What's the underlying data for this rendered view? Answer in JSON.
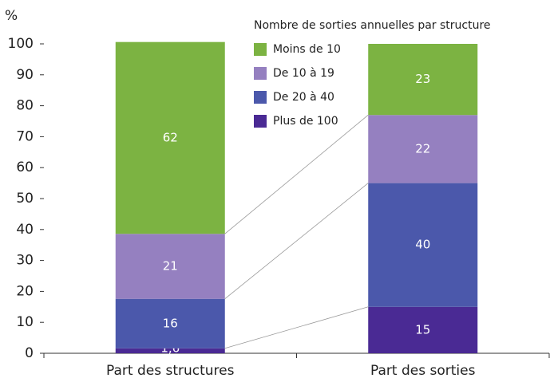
{
  "chart_data": {
    "type": "stacked-bar",
    "y_label": "%",
    "legend_title": "Nombre de sorties annuelles par structure",
    "categories": [
      "Part des structures",
      "Part des sorties"
    ],
    "series": [
      {
        "name": "Plus de 100",
        "color": "#4a2a94",
        "values": [
          1.6,
          15
        ],
        "value_labels": [
          "1,6",
          "15"
        ]
      },
      {
        "name": "De 20 à 40",
        "color": "#4b58ab",
        "values": [
          16,
          40
        ]
      },
      {
        "name": "De 10 à 19",
        "color": "#9580c0",
        "values": [
          21,
          22
        ]
      },
      {
        "name": "Moins de 10",
        "color": "#7cb342",
        "values": [
          62,
          23
        ]
      }
    ],
    "ylim": [
      0,
      100
    ],
    "yticks": [
      0,
      10,
      20,
      30,
      40,
      50,
      60,
      70,
      80,
      90,
      100
    ]
  }
}
